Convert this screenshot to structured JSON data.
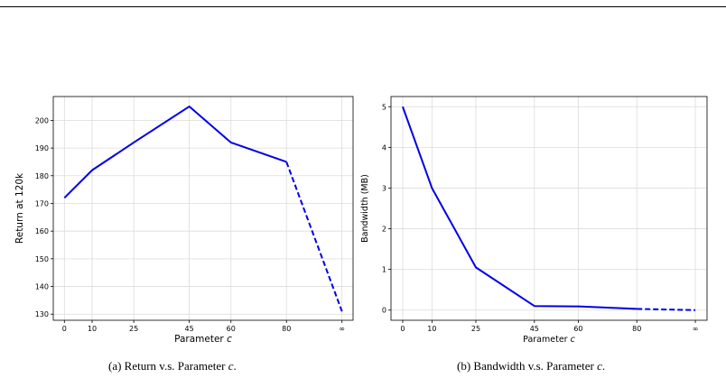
{
  "chart_data": [
    {
      "type": "line",
      "caption_prefix": "(a) Return v.s. Parameter ",
      "caption_var": "c",
      "caption_suffix": ".",
      "xlabel": "Parameter c",
      "ylabel": "Return at 120k",
      "categories": [
        "0",
        "10",
        "25",
        "45",
        "60",
        "80",
        "∞"
      ],
      "x": [
        0,
        10,
        25,
        45,
        60,
        80,
        100
      ],
      "values": [
        172,
        182,
        192,
        205,
        192,
        185,
        131
      ],
      "dashed_from_index": 5,
      "yticks": [
        130,
        140,
        150,
        160,
        170,
        180,
        190,
        200
      ],
      "ylim": [
        127.8,
        208.6
      ],
      "xlim": [
        -4,
        104
      ],
      "color": "#0000e6",
      "grid": true
    },
    {
      "type": "line",
      "caption_prefix": "(b) Bandwidth v.s. Parameter ",
      "caption_var": "c",
      "caption_suffix": ".",
      "xlabel": "Parameter c",
      "ylabel": "Bandwidth (MB)",
      "categories": [
        "0",
        "10",
        "25",
        "45",
        "60",
        "80",
        "∞"
      ],
      "x": [
        0,
        10,
        25,
        45,
        60,
        80,
        100
      ],
      "values": [
        5.0,
        3.0,
        1.05,
        0.1,
        0.09,
        0.03,
        0.0
      ],
      "dashed_from_index": 5,
      "yticks": [
        0,
        1,
        2,
        3,
        4,
        5
      ],
      "ylim": [
        -0.25,
        5.25
      ],
      "xlim": [
        -4,
        104
      ],
      "color": "#0000e6",
      "grid": true
    }
  ]
}
